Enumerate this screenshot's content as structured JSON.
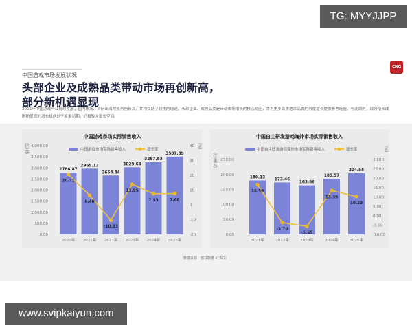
{
  "watermarks": {
    "top": "TG: MYYJJPP",
    "bottom": "www.svipkaiyun.com"
  },
  "header": {
    "section_label": "中国游戏市场发展状况",
    "logo_text": "CNG",
    "headline_line1": "头部企业及成熟品类带动市场再创新高，",
    "headline_line2": "部分新机遇显现",
    "description": "2025年中国游戏产业持续发展，国内市场、自研出海规模再创新高，并均保持了较快的增速。头部企业、成熟品类是带动市场增长的核心成因，并为更多高渗透率品类的再度增长提供参考经验。与此同时，部分增长成因所显现的增长机遇处于发展初期，仍有较大增长空间。"
  },
  "colors": {
    "bar": "#7b84d6",
    "line": "#f0c040",
    "marker": "#e8b830",
    "bar_label": "#1d2240"
  },
  "source": "数据来源：伽马数据（CNG）",
  "chart_data": [
    {
      "type": "bar",
      "title": "中国游戏市场实际销售收入",
      "categories": [
        "2020年",
        "2021年",
        "2022年",
        "2023年",
        "2024年",
        "2025年"
      ],
      "series": [
        {
          "name": "中国游戏市场实际销售收入",
          "type": "bar",
          "axis": "left",
          "values": [
            2786.87,
            2965.13,
            2658.84,
            3029.64,
            3257.83,
            3507.89
          ]
        },
        {
          "name": "增长率",
          "type": "line",
          "axis": "right",
          "values": [
            20.71,
            6.4,
            -10.33,
            13.95,
            7.53,
            7.68
          ]
        }
      ],
      "ylabel": "（亿元）",
      "y2label": "（%）",
      "ylim": [
        0,
        4000
      ],
      "y2lim": [
        -20,
        40
      ],
      "yticks": [
        "4,000.00",
        "3,500.00",
        "3,000.00",
        "2,500.00",
        "2,000.00",
        "1,500.00",
        "1,000.00",
        "500.00",
        "0.00"
      ],
      "y2ticks": [
        "40",
        "30",
        "20",
        "10",
        "0",
        "-10",
        "-20"
      ],
      "bar_labels": [
        "2786.87",
        "2965.13",
        "2658.84",
        "3029.64",
        "3257.83",
        "3507.89"
      ],
      "line_labels": [
        "20.71",
        "6.40",
        "-10.33",
        "13.95",
        "7.53",
        "7.68"
      ],
      "legend_position": "top"
    },
    {
      "type": "bar",
      "title": "中国自主研发游戏海外市场实际销售收入",
      "categories": [
        "2021年",
        "2022年",
        "2023年",
        "2024年",
        "2025年"
      ],
      "series": [
        {
          "name": "中国自主研发游戏海外市场实际销售收入",
          "type": "bar",
          "axis": "left",
          "values": [
            180.13,
            173.46,
            163.66,
            185.57,
            204.55
          ]
        },
        {
          "name": "增长率",
          "type": "line",
          "axis": "right",
          "values": [
            16.59,
            -3.7,
            -5.65,
            13.39,
            10.23
          ]
        }
      ],
      "ylabel": "（亿美元）",
      "y2label": "（%）",
      "ylim": [
        0,
        250
      ],
      "y2lim": [
        -10,
        30
      ],
      "yticks": [
        "250.00",
        "200.00",
        "150.00",
        "100.00",
        "50.00",
        "0.00"
      ],
      "y2ticks": [
        "30.00",
        "25.00",
        "20.00",
        "15.00",
        "10.00",
        "5.00",
        "0.00",
        "-5.00",
        "-10.00"
      ],
      "bar_labels": [
        "180.13",
        "173.46",
        "163.66",
        "185.57",
        "204.55"
      ],
      "line_labels": [
        "16.59",
        "-3.70",
        "-5.65",
        "13.39",
        "10.23"
      ],
      "legend_position": "top"
    }
  ]
}
